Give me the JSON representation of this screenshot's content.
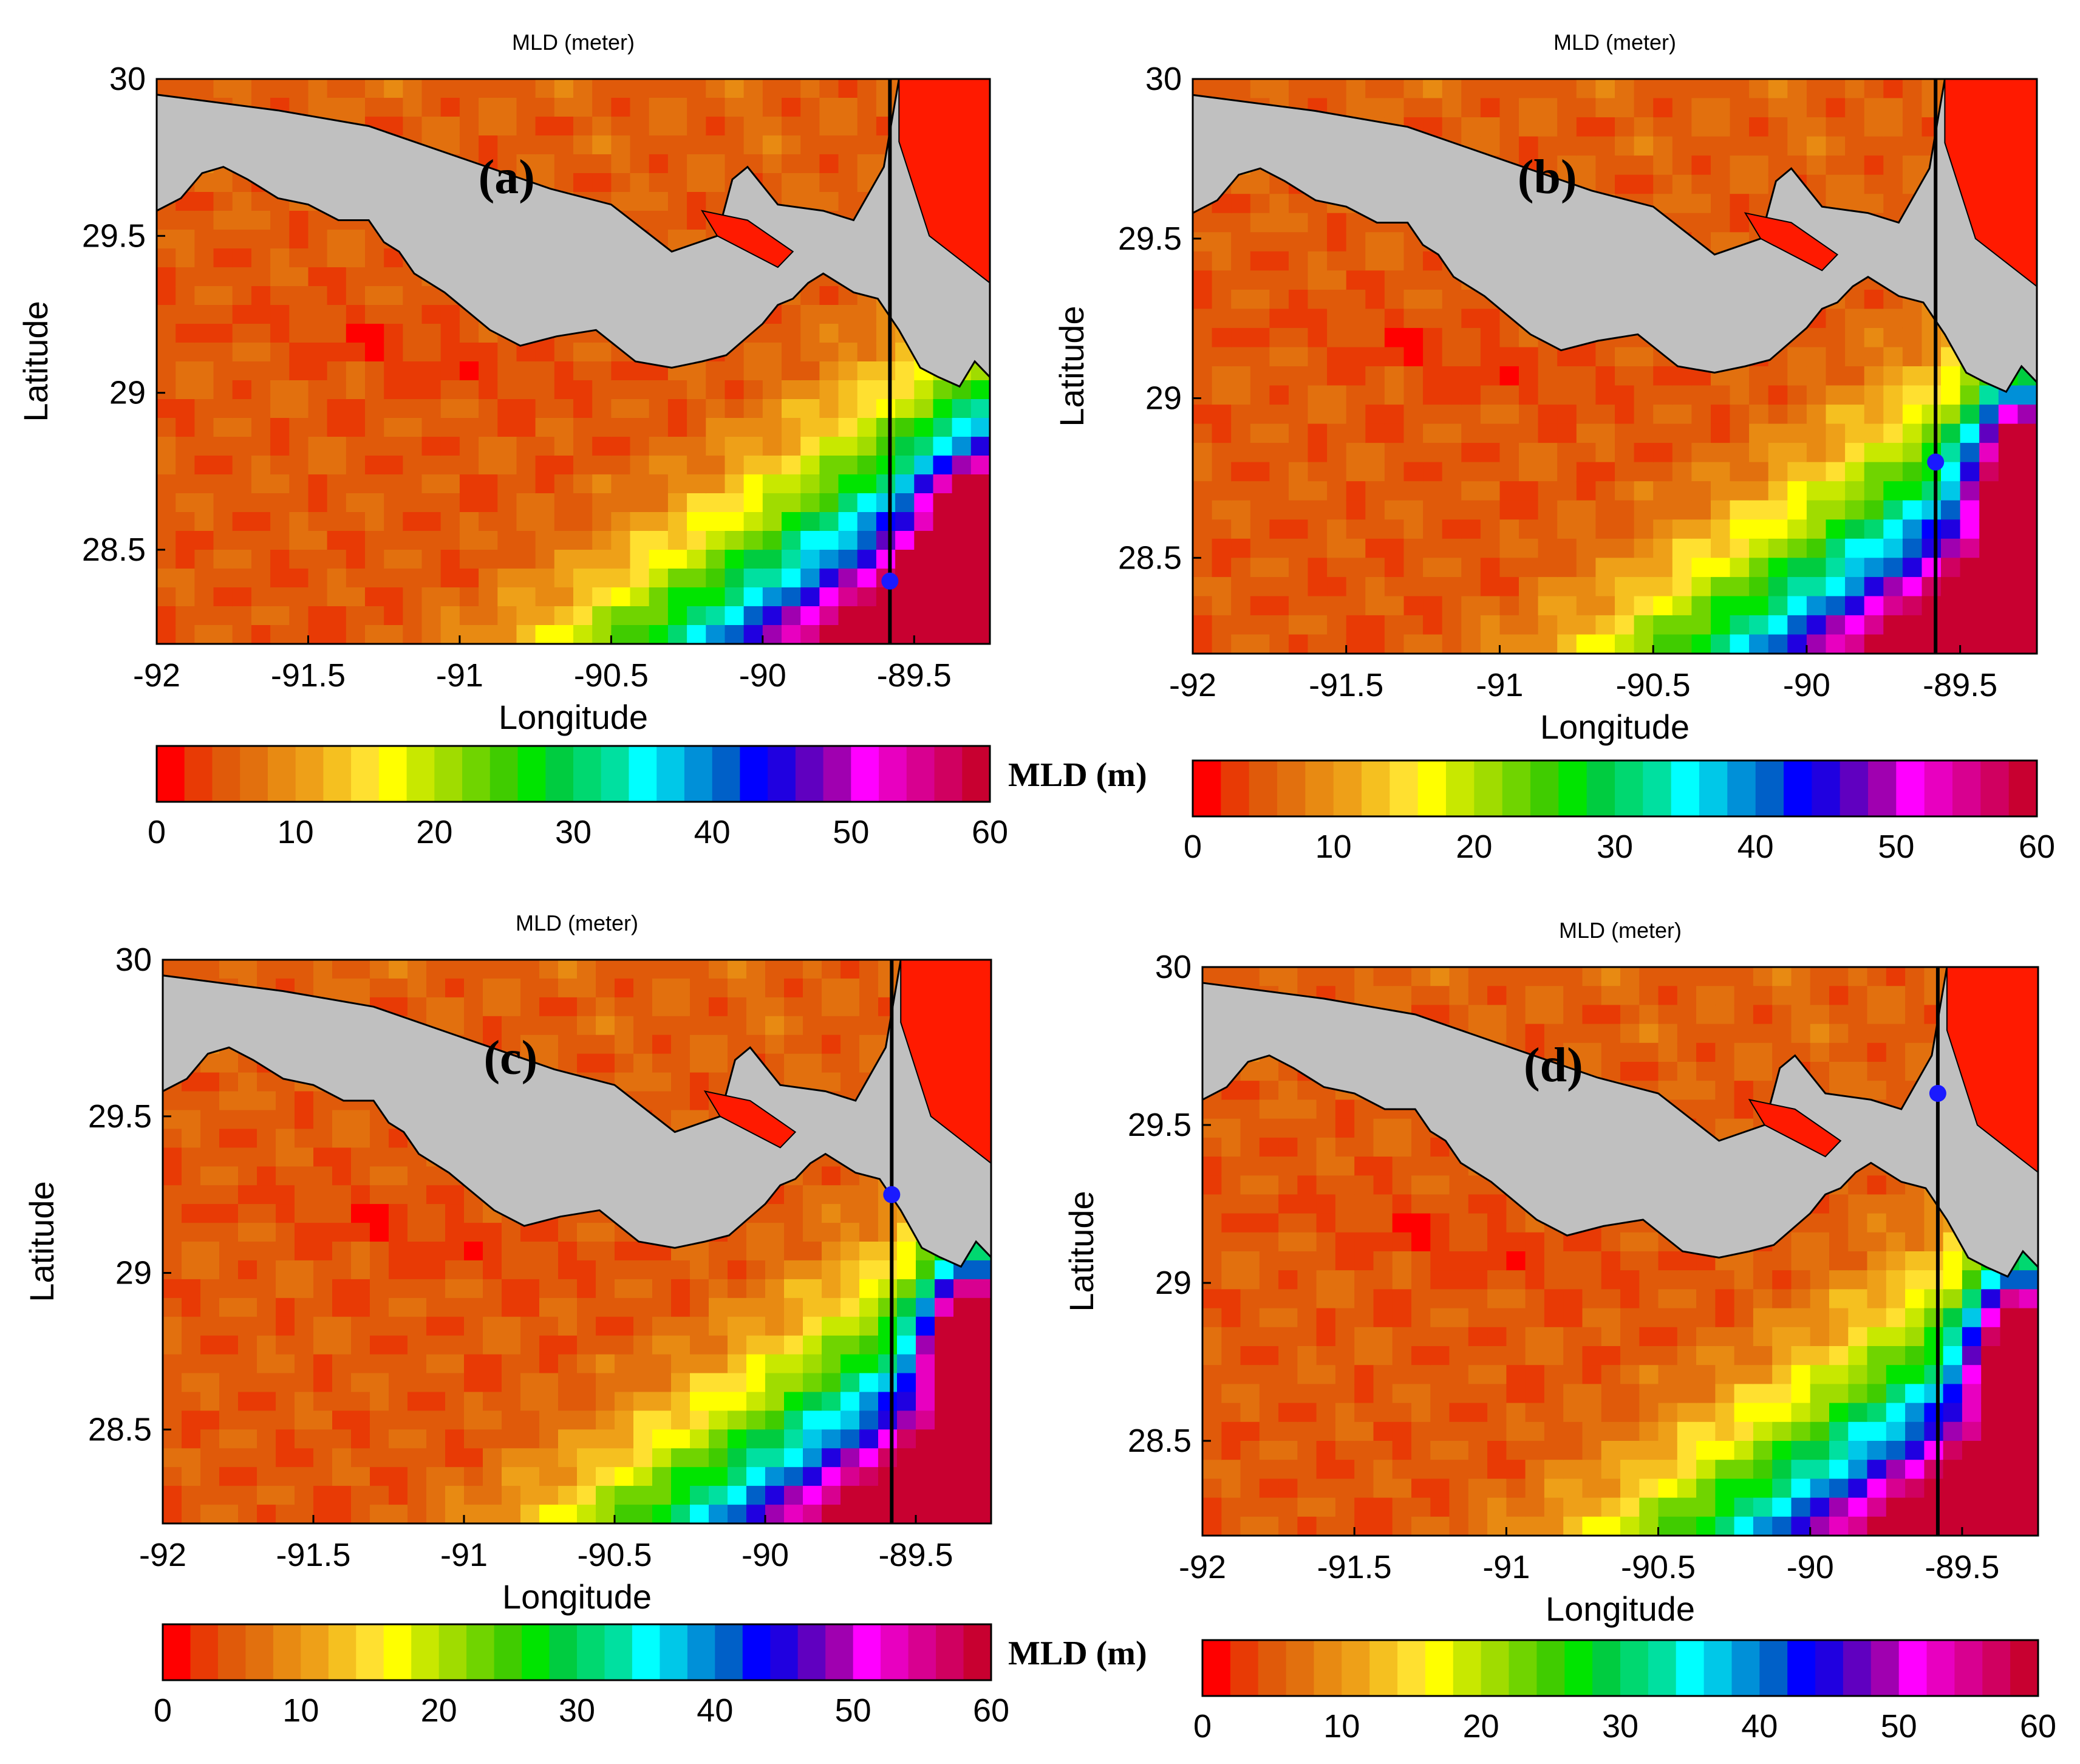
{
  "chart_data": [
    {
      "type": "heatmap",
      "panel_label": "(a)",
      "title": "MLD (meter)",
      "xlabel": "Longitude",
      "ylabel": "Latitude",
      "xlim": [
        -92,
        -89.25
      ],
      "ylim": [
        28.2,
        30
      ],
      "x_ticks": [
        "-92",
        "-91.5",
        "-91",
        "-90.5",
        "-90",
        "-89.5"
      ],
      "y_ticks": [
        "30",
        "29.5",
        "29",
        "28.5"
      ],
      "section_line_lon": -89.58,
      "marker": {
        "lon": -89.58,
        "lat": 28.4
      },
      "colorbar": {
        "label": "MLD (m)",
        "ticks": [
          "0",
          "10",
          "20",
          "30",
          "40",
          "50",
          "60"
        ],
        "range": [
          0,
          60
        ]
      }
    },
    {
      "type": "heatmap",
      "panel_label": "(b)",
      "title": "MLD (meter)",
      "xlabel": "Longitude",
      "ylabel": "Latitude",
      "xlim": [
        -92,
        -89.25
      ],
      "ylim": [
        28.2,
        30
      ],
      "x_ticks": [
        "-92",
        "-91.5",
        "-91",
        "-90.5",
        "-90",
        "-89.5"
      ],
      "y_ticks": [
        "30",
        "29.5",
        "29",
        "28.5"
      ],
      "section_line_lon": -89.58,
      "marker": {
        "lon": -89.58,
        "lat": 28.8
      },
      "colorbar": {
        "label": "",
        "ticks": [
          "0",
          "10",
          "20",
          "30",
          "40",
          "50",
          "60"
        ],
        "range": [
          0,
          60
        ]
      }
    },
    {
      "type": "heatmap",
      "panel_label": "(c)",
      "title": "MLD (meter)",
      "xlabel": "Longitude",
      "ylabel": "Latitude",
      "xlim": [
        -92,
        -89.25
      ],
      "ylim": [
        28.2,
        30
      ],
      "x_ticks": [
        "-92",
        "-91.5",
        "-91",
        "-90.5",
        "-90",
        "-89.5"
      ],
      "y_ticks": [
        "30",
        "29.5",
        "29",
        "28.5"
      ],
      "section_line_lon": -89.58,
      "marker": {
        "lon": -89.58,
        "lat": 29.25
      },
      "colorbar": {
        "label": "MLD (m)",
        "ticks": [
          "0",
          "10",
          "20",
          "30",
          "40",
          "50",
          "60"
        ],
        "range": [
          0,
          60
        ]
      }
    },
    {
      "type": "heatmap",
      "panel_label": "(d)",
      "title": "MLD (meter)",
      "xlabel": "Longitude",
      "ylabel": "Latitude",
      "xlim": [
        -92,
        -89.25
      ],
      "ylim": [
        28.2,
        30
      ],
      "x_ticks": [
        "-92",
        "-91.5",
        "-91",
        "-90.5",
        "-90",
        "-89.5"
      ],
      "y_ticks": [
        "30",
        "29.5",
        "29",
        "28.5"
      ],
      "section_line_lon": -89.58,
      "marker": {
        "lon": -89.58,
        "lat": 29.6
      },
      "colorbar": {
        "label": "",
        "ticks": [
          "0",
          "10",
          "20",
          "30",
          "40",
          "50",
          "60"
        ],
        "range": [
          0,
          60
        ]
      }
    }
  ],
  "colors": {
    "land": "#c0c0c0",
    "marker": "#1a1aff",
    "section_line": "#000000",
    "colormap": [
      "#ff0000",
      "#e83a05",
      "#e05a0a",
      "#e2700e",
      "#e88a12",
      "#eea018",
      "#f5c020",
      "#ffe030",
      "#ffff00",
      "#c8e800",
      "#a0dc00",
      "#70d400",
      "#40cc00",
      "#00e400",
      "#00cc40",
      "#00d870",
      "#00e0a0",
      "#00ffff",
      "#00c8e8",
      "#0090d8",
      "#0060c8",
      "#0000ff",
      "#2000e0",
      "#6000c0",
      "#a000b0",
      "#ff00ff",
      "#e800c0",
      "#d80090",
      "#d00060",
      "#c80030"
    ]
  }
}
